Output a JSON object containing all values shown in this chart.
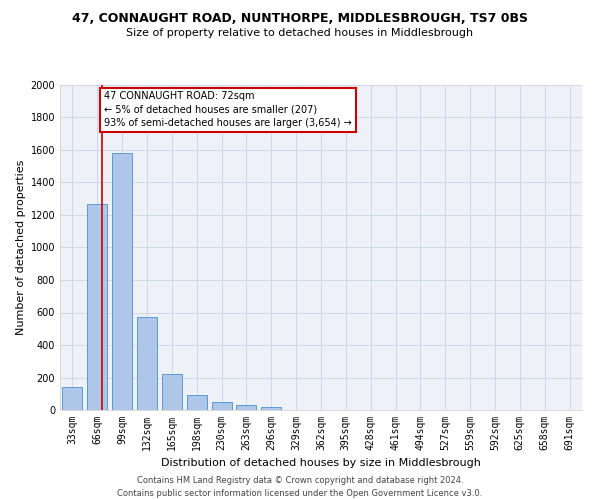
{
  "title": "47, CONNAUGHT ROAD, NUNTHORPE, MIDDLESBROUGH, TS7 0BS",
  "subtitle": "Size of property relative to detached houses in Middlesbrough",
  "xlabel": "Distribution of detached houses by size in Middlesbrough",
  "ylabel": "Number of detached properties",
  "footer_line1": "Contains HM Land Registry data © Crown copyright and database right 2024.",
  "footer_line2": "Contains public sector information licensed under the Open Government Licence v3.0.",
  "bin_labels": [
    "33sqm",
    "66sqm",
    "99sqm",
    "132sqm",
    "165sqm",
    "198sqm",
    "230sqm",
    "263sqm",
    "296sqm",
    "329sqm",
    "362sqm",
    "395sqm",
    "428sqm",
    "461sqm",
    "494sqm",
    "527sqm",
    "559sqm",
    "592sqm",
    "625sqm",
    "658sqm",
    "691sqm"
  ],
  "bar_values": [
    140,
    1270,
    1580,
    570,
    220,
    95,
    50,
    28,
    18,
    0,
    0,
    0,
    0,
    0,
    0,
    0,
    0,
    0,
    0,
    0,
    0
  ],
  "bar_color": "#aec6e8",
  "bar_edge_color": "#5b9bd5",
  "property_line_x": 1.18,
  "property_line_color": "#cc0000",
  "annotation_text": "47 CONNAUGHT ROAD: 72sqm\n← 5% of detached houses are smaller (207)\n93% of semi-detached houses are larger (3,654) →",
  "annotation_box_color": "#cc0000",
  "ylim": [
    0,
    2000
  ],
  "yticks": [
    0,
    200,
    400,
    600,
    800,
    1000,
    1200,
    1400,
    1600,
    1800,
    2000
  ],
  "grid_color": "#d0d8e8",
  "background_color": "#eef2f8",
  "title_fontsize": 9,
  "subtitle_fontsize": 8,
  "ylabel_fontsize": 8,
  "xlabel_fontsize": 8,
  "tick_fontsize": 7,
  "footer_fontsize": 6,
  "annotation_fontsize": 7
}
